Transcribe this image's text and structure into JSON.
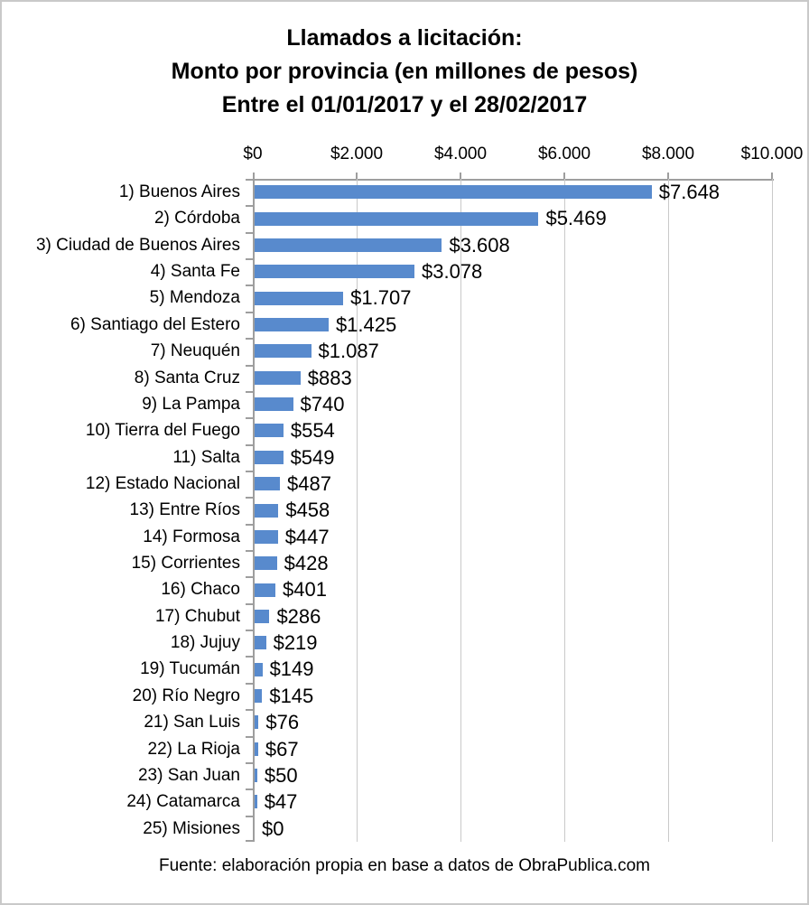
{
  "title": {
    "line1": "Llamados a licitación:",
    "line2": "Monto por provincia (en millones de pesos)",
    "line3": "Entre el 01/01/2017 y el 28/02/2017"
  },
  "footer": {
    "source": "Fuente: elaboración propia en base a datos de ObraPublica.com"
  },
  "chart_data": {
    "type": "bar",
    "orientation": "horizontal",
    "title": "Llamados a licitación: Monto por provincia (en millones de pesos) Entre el 01/01/2017 y el 28/02/2017",
    "categories": [
      "1) Buenos Aires",
      "2) Córdoba",
      "3) Ciudad de Buenos Aires",
      "4) Santa Fe",
      "5) Mendoza",
      "6) Santiago del Estero",
      "7) Neuquén",
      "8) Santa Cruz",
      "9) La Pampa",
      "10) Tierra del Fuego",
      "11) Salta",
      "12) Estado Nacional",
      "13) Entre Ríos",
      "14) Formosa",
      "15) Corrientes",
      "16) Chaco",
      "17) Chubut",
      "18) Jujuy",
      "19) Tucumán",
      "20) Río Negro",
      "21) San Luis",
      "22) La Rioja",
      "23) San Juan",
      "24) Catamarca",
      "25) Misiones"
    ],
    "values": [
      7648,
      5469,
      3608,
      3078,
      1707,
      1425,
      1087,
      883,
      740,
      554,
      549,
      487,
      458,
      447,
      428,
      401,
      286,
      219,
      149,
      145,
      76,
      67,
      50,
      47,
      0
    ],
    "value_labels": [
      "$7.648",
      "$5.469",
      "$3.608",
      "$3.078",
      "$1.707",
      "$1.425",
      "$1.087",
      "$883",
      "$740",
      "$554",
      "$549",
      "$487",
      "$458",
      "$447",
      "$428",
      "$401",
      "$286",
      "$219",
      "$149",
      "$145",
      "$76",
      "$67",
      "$50",
      "$47",
      "$0"
    ],
    "x_ticks": {
      "labels": [
        "$0",
        "$2.000",
        "$4.000",
        "$6.000",
        "$8.000",
        "$10.000"
      ],
      "values": [
        0,
        2000,
        4000,
        6000,
        8000,
        10000
      ]
    },
    "xlim": [
      0,
      10000
    ],
    "grid": true,
    "legend": false,
    "bar_color": "#588acd",
    "gridline_color": "#c9c9c9",
    "axis_color": "#9e9e9e",
    "text_color": "#000000",
    "xlabel": "",
    "ylabel": "",
    "source": "Fuente: elaboración propia en base a datos de ObraPublica.com"
  }
}
